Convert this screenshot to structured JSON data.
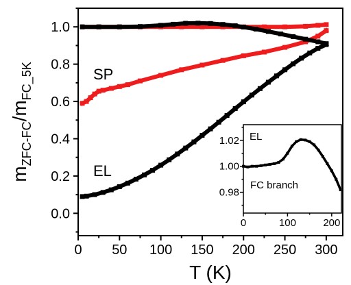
{
  "chart_data": [
    {
      "type": "scatter",
      "xlabel": "T (K)",
      "ylabel_main": "m",
      "ylabel_sub1": "ZFC-FC",
      "ylabel_slash": "/m",
      "ylabel_sub2": "FC_5K",
      "xlim": [
        0,
        320
      ],
      "ylim": [
        -0.12,
        1.1
      ],
      "x_ticks": [
        0,
        50,
        100,
        150,
        200,
        250,
        300
      ],
      "y_ticks": [
        0.0,
        0.2,
        0.4,
        0.6,
        0.8,
        1.0
      ],
      "x_tick_labels": [
        "0",
        "50",
        "100",
        "150",
        "200",
        "250",
        "300"
      ],
      "y_tick_labels": [
        "0.0",
        "0.2",
        "0.4",
        "0.6",
        "0.8",
        "1.0"
      ],
      "grid": false,
      "annotations": [
        "SP",
        "EL"
      ],
      "series": [
        {
          "name": "SP",
          "color": "#ee1c1c",
          "x": [
            5,
            10,
            15,
            20,
            25,
            30,
            40,
            50,
            60,
            75,
            100,
            125,
            150,
            175,
            200,
            225,
            250,
            275,
            290,
            300
          ],
          "y": [
            0.59,
            0.6,
            0.62,
            0.64,
            0.655,
            0.66,
            0.67,
            0.68,
            0.69,
            0.71,
            0.74,
            0.77,
            0.795,
            0.82,
            0.845,
            0.865,
            0.89,
            0.92,
            0.95,
            0.98
          ]
        },
        {
          "name": "SP",
          "color": "#ee1c1c",
          "x": [
            5,
            25,
            50,
            75,
            100,
            125,
            150,
            175,
            200,
            225,
            250,
            275,
            290,
            300
          ],
          "y": [
            1.0,
            1.0,
            1.0,
            1.0,
            1.0,
            1.0,
            1.0,
            1.0,
            1.0,
            1.0,
            1.0,
            1.003,
            1.008,
            1.012
          ]
        },
        {
          "name": "EL",
          "color": "#000000",
          "x": [
            5,
            10,
            20,
            30,
            40,
            50,
            60,
            70,
            80,
            90,
            100,
            110,
            120,
            130,
            140,
            150,
            160,
            170,
            180,
            190,
            200,
            210,
            220,
            230,
            240,
            250,
            260,
            270,
            280,
            290,
            300
          ],
          "y": [
            0.09,
            0.092,
            0.1,
            0.112,
            0.126,
            0.143,
            0.162,
            0.183,
            0.206,
            0.231,
            0.258,
            0.287,
            0.318,
            0.35,
            0.383,
            0.418,
            0.453,
            0.489,
            0.525,
            0.562,
            0.598,
            0.634,
            0.669,
            0.703,
            0.737,
            0.77,
            0.802,
            0.832,
            0.86,
            0.885,
            0.905
          ]
        },
        {
          "name": "EL",
          "color": "#000000",
          "x": [
            5,
            25,
            50,
            75,
            100,
            115,
            130,
            145,
            160,
            175,
            190,
            200,
            215,
            230,
            245,
            260,
            275,
            290,
            300
          ],
          "y": [
            1.0,
            1.0,
            1.0,
            1.002,
            1.008,
            1.014,
            1.019,
            1.02,
            1.018,
            1.013,
            1.006,
            0.999,
            0.988,
            0.975,
            0.962,
            0.948,
            0.934,
            0.92,
            0.91
          ]
        }
      ]
    },
    {
      "type": "scatter",
      "xlim": [
        0,
        222
      ],
      "ylim": [
        0.964,
        1.032
      ],
      "x_ticks": [
        0,
        100,
        200
      ],
      "y_ticks": [
        0.98,
        1.0,
        1.02
      ],
      "x_tick_labels": [
        "0",
        "100",
        "200"
      ],
      "y_tick_labels": [
        "0.98",
        "1.00",
        "1.02"
      ],
      "annotations": [
        "EL",
        "FC branch"
      ],
      "series": [
        {
          "name": "EL",
          "color": "#000000",
          "x": [
            0,
            10,
            20,
            30,
            40,
            50,
            60,
            70,
            80,
            90,
            100,
            110,
            120,
            130,
            140,
            150,
            160,
            170,
            180,
            190,
            200,
            210,
            220
          ],
          "y": [
            1.0,
            0.9995,
            1.0,
            1.0,
            1.0005,
            1.001,
            1.0015,
            1.002,
            1.003,
            1.0055,
            1.01,
            1.0155,
            1.019,
            1.0205,
            1.0202,
            1.019,
            1.0165,
            1.0125,
            1.0075,
            1.002,
            0.9965,
            0.99,
            0.982
          ]
        }
      ]
    }
  ]
}
